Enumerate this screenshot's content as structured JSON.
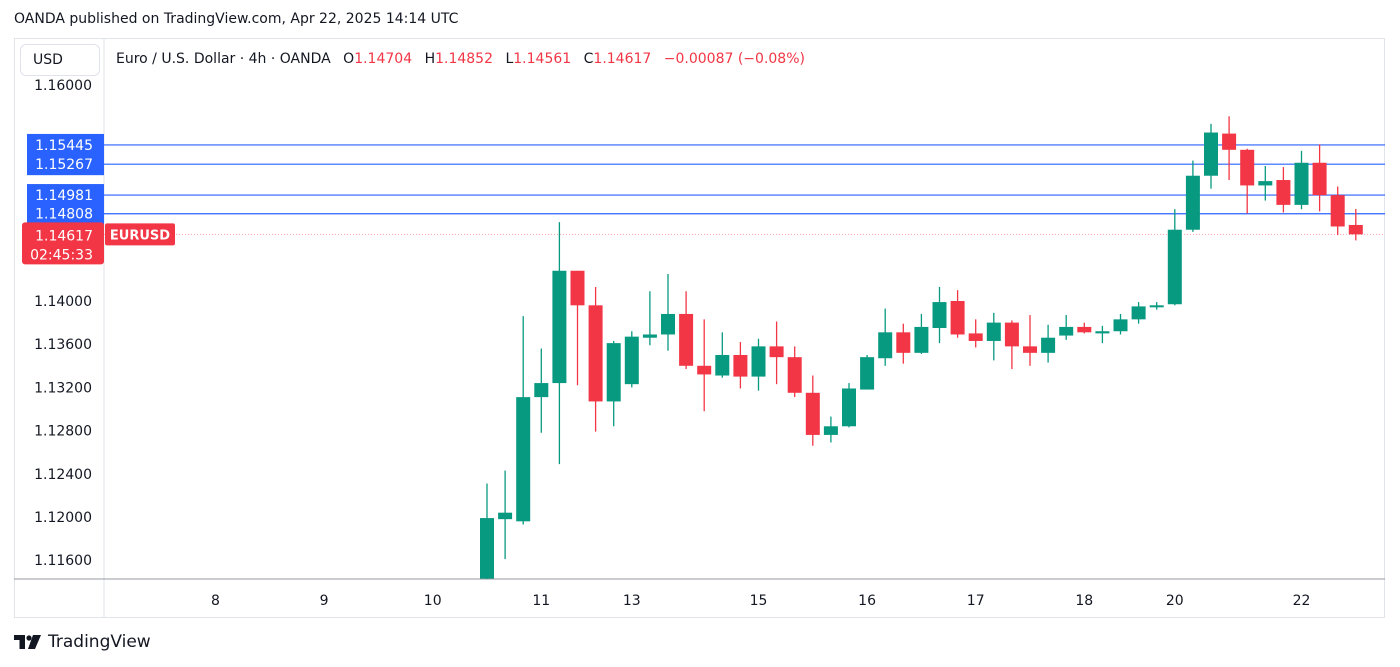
{
  "published": "OANDA published on TradingView.com, Apr 22, 2025 14:14 UTC",
  "currency_button": "USD",
  "legend": {
    "symbol": "Euro / U.S. Dollar · 4h · OANDA",
    "o_label": "O",
    "o": "1.14704",
    "h_label": "H",
    "h": "1.14852",
    "l_label": "L",
    "l": "1.14561",
    "c_label": "C",
    "c": "1.14617",
    "change": "−0.00087 (−0.08%)"
  },
  "footer": {
    "brand": "TradingView"
  },
  "colors": {
    "up": "#089981",
    "down": "#f23645",
    "level": "#2962ff"
  },
  "chart_data": {
    "type": "candlestick",
    "title": "Euro / U.S. Dollar · 4h · OANDA",
    "symbol_tag": "EURUSD",
    "last_price": "1.14617",
    "countdown": "02:45:33",
    "y_range": [
      1.1125,
      1.1625
    ],
    "y_ticks": [
      "1.16000",
      "1.14000",
      "1.13600",
      "1.13200",
      "1.12800",
      "1.12400",
      "1.12000",
      "1.11600"
    ],
    "levels": [
      "1.15445",
      "1.15267",
      "1.14981",
      "1.14808"
    ],
    "x_ticks": [
      {
        "label": "8",
        "bar": -15
      },
      {
        "label": "9",
        "bar": -9
      },
      {
        "label": "10",
        "bar": -3
      },
      {
        "label": "11",
        "bar": 3
      },
      {
        "label": "13",
        "bar": 8
      },
      {
        "label": "15",
        "bar": 15
      },
      {
        "label": "16",
        "bar": 21
      },
      {
        "label": "17",
        "bar": 27
      },
      {
        "label": "18",
        "bar": 33
      },
      {
        "label": "20",
        "bar": 38
      },
      {
        "label": "22",
        "bar": 45
      }
    ],
    "ohlc": [
      [
        1.1143,
        1.1231,
        1.113,
        1.1199
      ],
      [
        1.1198,
        1.1243,
        1.1161,
        1.1204
      ],
      [
        1.1196,
        1.1386,
        1.1193,
        1.1311
      ],
      [
        1.1311,
        1.1356,
        1.1278,
        1.1324
      ],
      [
        1.1324,
        1.1473,
        1.1249,
        1.1428
      ],
      [
        1.1428,
        1.1428,
        1.1322,
        1.1396
      ],
      [
        1.1396,
        1.1413,
        1.1279,
        1.1307
      ],
      [
        1.1307,
        1.1363,
        1.1284,
        1.1361
      ],
      [
        1.1323,
        1.1372,
        1.132,
        1.1367
      ],
      [
        1.1366,
        1.1409,
        1.1359,
        1.1369
      ],
      [
        1.1369,
        1.1425,
        1.1354,
        1.1388
      ],
      [
        1.1388,
        1.1409,
        1.1337,
        1.134
      ],
      [
        1.134,
        1.1383,
        1.1298,
        1.1332
      ],
      [
        1.1331,
        1.1371,
        1.1329,
        1.135
      ],
      [
        1.135,
        1.1362,
        1.1319,
        1.133
      ],
      [
        1.133,
        1.1365,
        1.1317,
        1.1358
      ],
      [
        1.1358,
        1.1381,
        1.1323,
        1.1348
      ],
      [
        1.1348,
        1.1358,
        1.1311,
        1.1315
      ],
      [
        1.1315,
        1.1331,
        1.1266,
        1.1276
      ],
      [
        1.1276,
        1.1293,
        1.1269,
        1.1284
      ],
      [
        1.1284,
        1.1324,
        1.1283,
        1.1319
      ],
      [
        1.1318,
        1.135,
        1.1318,
        1.1348
      ],
      [
        1.1347,
        1.1393,
        1.134,
        1.1371
      ],
      [
        1.1371,
        1.1379,
        1.1342,
        1.1352
      ],
      [
        1.1352,
        1.1388,
        1.1351,
        1.1376
      ],
      [
        1.1375,
        1.1413,
        1.1361,
        1.1399
      ],
      [
        1.14,
        1.141,
        1.1366,
        1.1369
      ],
      [
        1.137,
        1.1383,
        1.1357,
        1.1363
      ],
      [
        1.1363,
        1.1389,
        1.1345,
        1.138
      ],
      [
        1.138,
        1.1382,
        1.1337,
        1.1358
      ],
      [
        1.1358,
        1.1387,
        1.134,
        1.1352
      ],
      [
        1.1352,
        1.1378,
        1.1343,
        1.1366
      ],
      [
        1.1368,
        1.1387,
        1.1364,
        1.1376
      ],
      [
        1.1376,
        1.138,
        1.137,
        1.1371
      ],
      [
        1.137,
        1.1377,
        1.1361,
        1.1372
      ],
      [
        1.1372,
        1.1388,
        1.1369,
        1.1383
      ],
      [
        1.1383,
        1.1399,
        1.1379,
        1.1395
      ],
      [
        1.1395,
        1.1399,
        1.1392,
        1.1396
      ],
      [
        1.1397,
        1.1485,
        1.1396,
        1.1466
      ],
      [
        1.1466,
        1.153,
        1.1464,
        1.1516
      ],
      [
        1.1516,
        1.1564,
        1.1504,
        1.1556
      ],
      [
        1.1555,
        1.1571,
        1.1512,
        1.154
      ],
      [
        1.154,
        1.1541,
        1.1481,
        1.1507
      ],
      [
        1.1507,
        1.1525,
        1.1493,
        1.1511
      ],
      [
        1.1512,
        1.1524,
        1.1482,
        1.1489
      ],
      [
        1.1489,
        1.1539,
        1.1485,
        1.1528
      ],
      [
        1.1528,
        1.1545,
        1.1483,
        1.1498
      ],
      [
        1.1498,
        1.1506,
        1.1461,
        1.1469
      ],
      [
        1.14704,
        1.14852,
        1.14561,
        1.14617
      ]
    ]
  }
}
